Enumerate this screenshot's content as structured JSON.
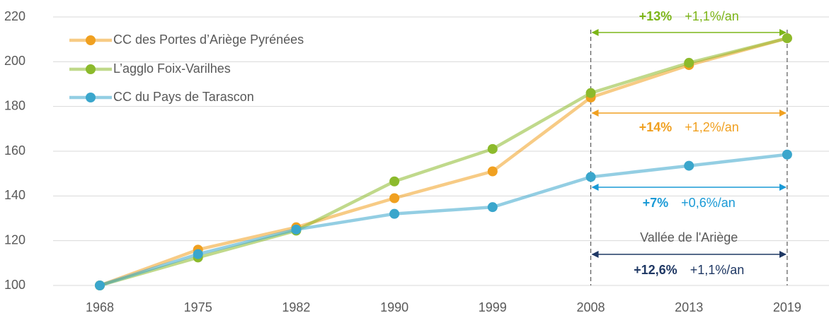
{
  "chart_data": {
    "type": "line",
    "categories": [
      "1968",
      "1975",
      "1982",
      "1990",
      "1999",
      "2008",
      "2013",
      "2019"
    ],
    "series": [
      {
        "name": "CC des Portes d’Ariège Pyrénées",
        "color": "#f0a020",
        "values": [
          100,
          116,
          126,
          139,
          151,
          184,
          198.5,
          210.5
        ]
      },
      {
        "name": "L’agglo Foix-Varilhes",
        "color": "#8cba2c",
        "values": [
          100,
          112.5,
          124.5,
          146.5,
          161,
          186,
          199.5,
          210.5
        ]
      },
      {
        "name": "CC du Pays de Tarascon",
        "color": "#3aa6cc",
        "values": [
          100,
          114,
          125,
          132,
          135,
          148.5,
          153.5,
          158.5
        ]
      }
    ],
    "ylim": [
      100,
      220
    ],
    "yticks": [
      100,
      120,
      140,
      160,
      180,
      200,
      220
    ],
    "grid": true,
    "legend": "upper left",
    "annotations": [
      {
        "text": "+13%",
        "subtext": "+1,1%/an",
        "color": "#7cb518"
      },
      {
        "text": "+14%",
        "subtext": "+1,2%/an",
        "color": "#f0a020"
      },
      {
        "text": "+7%",
        "subtext": "+0,6%/an",
        "color": "#1a9ad6"
      },
      {
        "label": "Vallée de l'Ariège",
        "text": "+12,6%",
        "subtext": "+1,1%/an",
        "color": "#1f3864"
      }
    ]
  }
}
